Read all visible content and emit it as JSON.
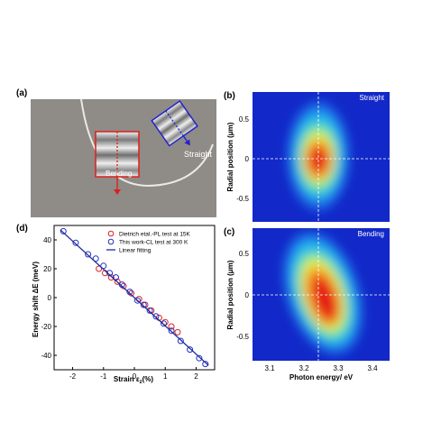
{
  "panels": {
    "a": "(a)",
    "b": "(b)",
    "c": "(c)",
    "d": "(d)"
  },
  "panel_a": {
    "label_straight": "Straight",
    "label_bending": "Bending"
  },
  "panel_b": {
    "tag": "Straight"
  },
  "panel_c": {
    "tag": "Bending"
  },
  "colors": {
    "bending_box": "#e01c1c",
    "straight_box": "#2222cc",
    "photo_bg": "#8e8a86",
    "heatmap_bg": "#1228c8"
  },
  "chart_data": [
    {
      "type": "heatmap",
      "panel": "b",
      "ylabel": "Radial position (μm)",
      "yticks": [
        "0.5",
        "0",
        "-0.5"
      ],
      "yrange": [
        -0.9,
        0.8
      ],
      "xrange": [
        3.05,
        3.45
      ],
      "guide_lines": {
        "x": 3.24,
        "y": 0
      },
      "colormap": "jet"
    },
    {
      "type": "heatmap",
      "panel": "c",
      "xlabel": "Photon energy/ eV",
      "ylabel": "Radial position (μm)",
      "xticks": [
        "3.1",
        "3.2",
        "3.3",
        "3.4"
      ],
      "yticks": [
        "0.5",
        "0",
        "-0.5"
      ],
      "yrange": [
        -0.9,
        0.8
      ],
      "xrange": [
        3.05,
        3.45
      ],
      "guide_lines": {
        "x": 3.24,
        "y": 0
      },
      "colormap": "jet"
    },
    {
      "type": "scatter",
      "panel": "d",
      "xlabel": "Strain ε",
      "xlabel_sub": "z",
      "xlabel_unit": "(%)",
      "ylabel": "Energy shift ΔE (meV)",
      "xlim": [
        -2.6,
        2.6
      ],
      "ylim": [
        -50,
        50
      ],
      "xticks": [
        -2,
        -1,
        0,
        1,
        2
      ],
      "yticks": [
        -40,
        -20,
        0,
        20,
        40
      ],
      "series": [
        {
          "name": "Dietrich etal.-PL test at 15K",
          "color": "#e02020",
          "marker": "circle",
          "points": [
            [
              -1.15,
              20
            ],
            [
              -0.95,
              17
            ],
            [
              -0.75,
              14
            ],
            [
              -0.55,
              11
            ],
            [
              -0.35,
              8
            ],
            [
              -0.1,
              3
            ],
            [
              0.15,
              -1
            ],
            [
              0.35,
              -5
            ],
            [
              0.55,
              -9
            ],
            [
              0.8,
              -14
            ],
            [
              1.0,
              -17
            ],
            [
              1.2,
              -20
            ],
            [
              1.4,
              -24
            ]
          ]
        },
        {
          "name": "This work-CL test at 300 K",
          "color": "#2030c0",
          "marker": "circle",
          "points": [
            [
              -2.3,
              46
            ],
            [
              -1.9,
              38
            ],
            [
              -1.5,
              30
            ],
            [
              -1.25,
              27
            ],
            [
              -1.0,
              22
            ],
            [
              -0.8,
              17
            ],
            [
              -0.6,
              14
            ],
            [
              -0.4,
              9
            ],
            [
              -0.15,
              4
            ],
            [
              0.1,
              -2
            ],
            [
              0.3,
              -5
            ],
            [
              0.5,
              -9
            ],
            [
              0.7,
              -13
            ],
            [
              0.95,
              -18
            ],
            [
              1.2,
              -23
            ],
            [
              1.5,
              -30
            ],
            [
              1.8,
              -36
            ],
            [
              2.1,
              -42
            ],
            [
              2.3,
              -46
            ]
          ]
        },
        {
          "name": "Linear fitting",
          "color": "#1a2aa0",
          "marker": "line",
          "points": [
            [
              -2.4,
              47
            ],
            [
              2.4,
              -47
            ]
          ]
        }
      ]
    }
  ]
}
